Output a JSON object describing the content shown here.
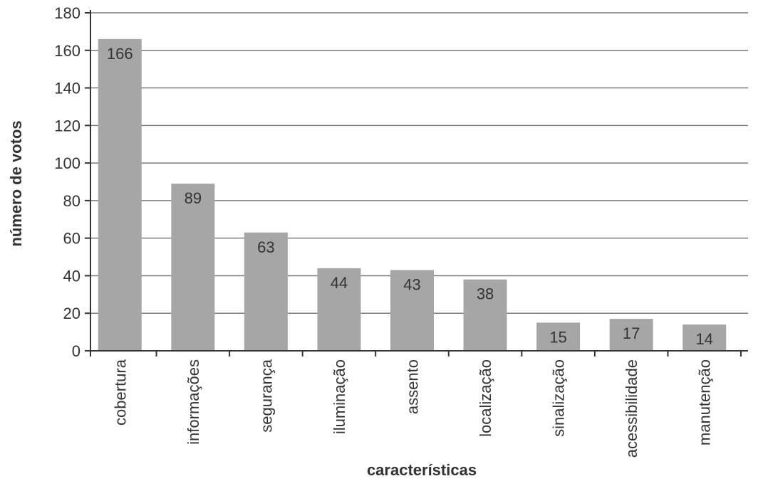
{
  "chart_data": {
    "type": "bar",
    "title": "",
    "xlabel": "características",
    "ylabel": "número de votos",
    "ylim": [
      0,
      180
    ],
    "yticks": [
      0,
      20,
      40,
      60,
      80,
      100,
      120,
      140,
      160,
      180
    ],
    "grid": true,
    "legend": "none",
    "categories": [
      "cobertura",
      "informações",
      "segurança",
      "iluminação",
      "assento",
      "localização",
      "sinalização",
      "acessibilidade",
      "manutenção"
    ],
    "values": [
      166,
      89,
      63,
      44,
      43,
      38,
      15,
      17,
      14
    ],
    "data_labels": [
      "166",
      "89",
      "63",
      "44",
      "43",
      "38",
      "15",
      "17",
      "14"
    ]
  },
  "colors": {
    "bar": "#a6a6a6",
    "grid": "#7a7a7a",
    "axis": "#333333",
    "text": "#333333"
  }
}
